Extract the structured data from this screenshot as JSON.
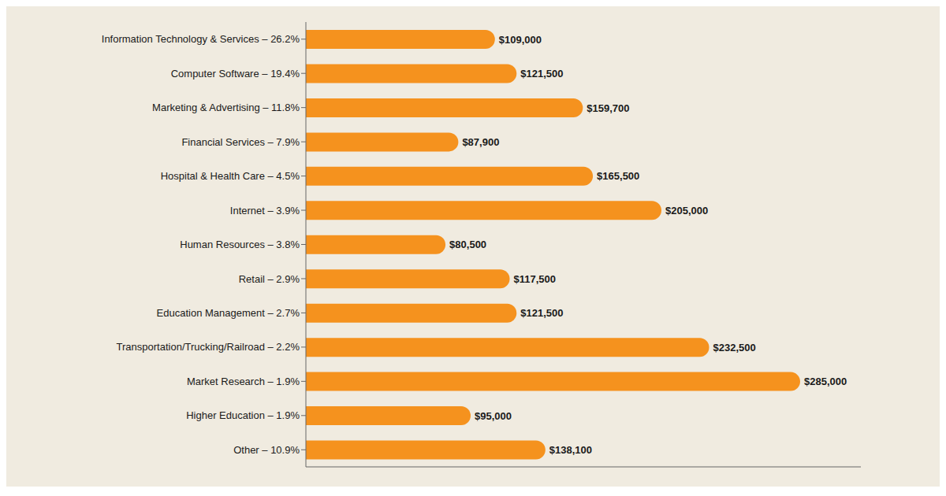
{
  "chart_data": {
    "type": "bar",
    "orientation": "horizontal",
    "categories": [
      "Information Technology & Services – 26.2%",
      "Computer Software – 19.4%",
      "Marketing & Advertising – 11.8%",
      "Financial Services – 7.9%",
      "Hospital & Health Care – 4.5%",
      "Internet – 3.9%",
      "Human Resources – 3.8%",
      "Retail – 2.9%",
      "Education Management – 2.7%",
      "Transportation/Trucking/Railroad – 2.2%",
      "Market Research – 1.9%",
      "Higher Education – 1.9%",
      "Other – 10.9%"
    ],
    "values": [
      109000,
      121500,
      159700,
      87900,
      165500,
      205000,
      80500,
      117500,
      121500,
      232500,
      285000,
      95000,
      138100
    ],
    "value_labels": [
      "$109,000",
      "$121,500",
      "$159,700",
      "$87,900",
      "$165,500",
      "$205,000",
      "$80,500",
      "$117,500",
      "$121,500",
      "$232,500",
      "$285,000",
      "$95,000",
      "$138,100"
    ],
    "color": "#F5921E",
    "xlim": [
      0,
      320000
    ],
    "data_labels": true,
    "tick_labels": "y",
    "grid": false
  }
}
